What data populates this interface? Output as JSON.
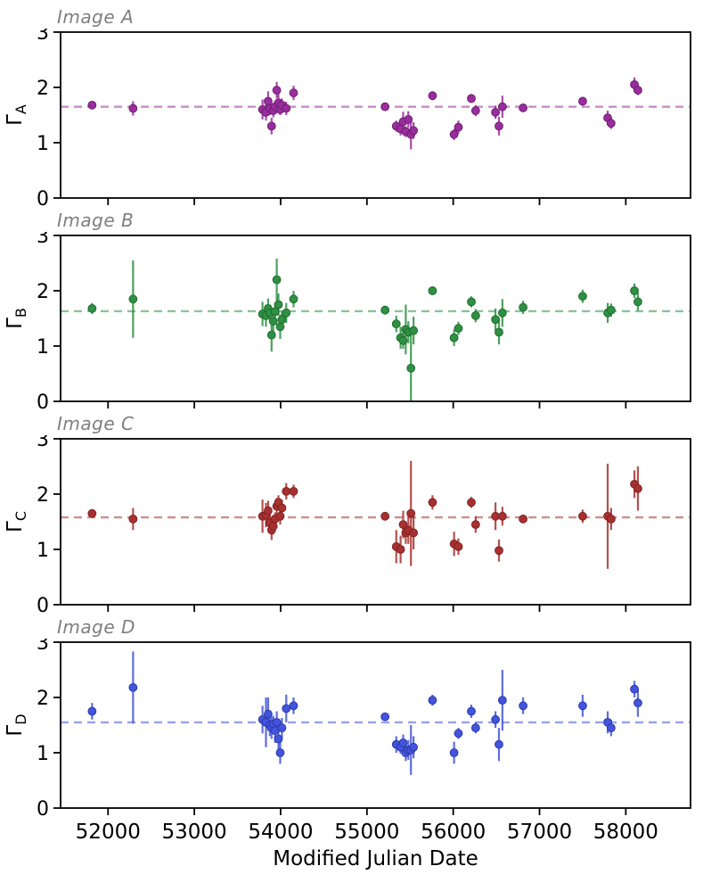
{
  "figure": {
    "xlabel": "Modified Julian Date",
    "x_ticks": [
      52000,
      53000,
      54000,
      55000,
      56000,
      57000,
      58000
    ],
    "y_ticks": [
      0,
      1,
      2,
      3
    ],
    "xlim": [
      51450,
      58750
    ],
    "ylim": [
      0,
      3
    ],
    "axis_color": "#000000",
    "title_color": "#7f7f7f"
  },
  "chart_data": [
    {
      "type": "scatter",
      "title": "Image A",
      "ylabel_gamma": "Γ",
      "ylabel_sub": "A",
      "color": "#9A2D9E",
      "edge": "#6B1F6E",
      "mean_line": 1.65,
      "xlabel": "Modified Julian Date",
      "ylim": [
        0,
        3
      ],
      "points": [
        [
          51815,
          1.68,
          0.06
        ],
        [
          52290,
          1.62,
          0.13
        ],
        [
          53790,
          1.6,
          0.18
        ],
        [
          53830,
          1.55,
          0.15
        ],
        [
          53855,
          1.75,
          0.18
        ],
        [
          53875,
          1.62,
          0.12
        ],
        [
          53895,
          1.3,
          0.15
        ],
        [
          53915,
          1.58,
          0.12
        ],
        [
          53935,
          1.65,
          0.1
        ],
        [
          53955,
          1.95,
          0.15
        ],
        [
          53975,
          1.72,
          0.18
        ],
        [
          53995,
          1.6,
          0.1
        ],
        [
          54015,
          1.68,
          0.12
        ],
        [
          54065,
          1.62,
          0.12
        ],
        [
          54150,
          1.9,
          0.13
        ],
        [
          55210,
          1.65,
          0.07
        ],
        [
          55340,
          1.3,
          0.1
        ],
        [
          55390,
          1.25,
          0.12
        ],
        [
          55420,
          1.38,
          0.18
        ],
        [
          55450,
          1.2,
          0.1
        ],
        [
          55480,
          1.42,
          0.15
        ],
        [
          55510,
          1.15,
          0.27
        ],
        [
          55540,
          1.22,
          0.15
        ],
        [
          55760,
          1.85,
          0.08
        ],
        [
          56010,
          1.15,
          0.1
        ],
        [
          56060,
          1.28,
          0.12
        ],
        [
          56210,
          1.8,
          0.08
        ],
        [
          56260,
          1.58,
          0.1
        ],
        [
          56490,
          1.55,
          0.12
        ],
        [
          56530,
          1.3,
          0.17
        ],
        [
          56570,
          1.65,
          0.2
        ],
        [
          56810,
          1.63,
          0.06
        ],
        [
          57500,
          1.75,
          0.08
        ],
        [
          57790,
          1.45,
          0.13
        ],
        [
          57830,
          1.35,
          0.1
        ],
        [
          58100,
          2.05,
          0.13
        ],
        [
          58140,
          1.95,
          0.09
        ]
      ]
    },
    {
      "type": "scatter",
      "title": "Image B",
      "ylabel_gamma": "Γ",
      "ylabel_sub": "B",
      "color": "#2E9142",
      "edge": "#1F6B30",
      "mean_line": 1.63,
      "xlabel": "Modified Julian Date",
      "ylim": [
        0,
        3
      ],
      "points": [
        [
          51815,
          1.68,
          0.1
        ],
        [
          52290,
          1.85,
          0.7
        ],
        [
          53790,
          1.58,
          0.22
        ],
        [
          53830,
          1.55,
          0.2
        ],
        [
          53855,
          1.68,
          0.18
        ],
        [
          53875,
          1.6,
          0.15
        ],
        [
          53895,
          1.2,
          0.3
        ],
        [
          53915,
          1.45,
          0.2
        ],
        [
          53935,
          1.62,
          0.15
        ],
        [
          53955,
          2.2,
          0.38
        ],
        [
          53975,
          1.75,
          0.2
        ],
        [
          53995,
          1.35,
          0.22
        ],
        [
          54015,
          1.48,
          0.15
        ],
        [
          54065,
          1.6,
          0.18
        ],
        [
          54150,
          1.85,
          0.15
        ],
        [
          55210,
          1.65,
          0.08
        ],
        [
          55340,
          1.4,
          0.15
        ],
        [
          55390,
          1.15,
          0.2
        ],
        [
          55420,
          1.1,
          0.15
        ],
        [
          55450,
          1.3,
          0.45
        ],
        [
          55480,
          1.25,
          0.2
        ],
        [
          55510,
          0.6,
          0.6
        ],
        [
          55540,
          1.28,
          0.25
        ],
        [
          55760,
          2.0,
          0.08
        ],
        [
          56010,
          1.15,
          0.15
        ],
        [
          56060,
          1.32,
          0.12
        ],
        [
          56210,
          1.8,
          0.1
        ],
        [
          56260,
          1.55,
          0.12
        ],
        [
          56490,
          1.48,
          0.2
        ],
        [
          56530,
          1.25,
          0.22
        ],
        [
          56570,
          1.6,
          0.25
        ],
        [
          56810,
          1.7,
          0.12
        ],
        [
          57500,
          1.9,
          0.12
        ],
        [
          57790,
          1.6,
          0.18
        ],
        [
          57830,
          1.65,
          0.12
        ],
        [
          58100,
          2.0,
          0.13
        ],
        [
          58140,
          1.8,
          0.16
        ]
      ]
    },
    {
      "type": "scatter",
      "title": "Image C",
      "ylabel_gamma": "Γ",
      "ylabel_sub": "C",
      "color": "#A93030",
      "edge": "#7C2222",
      "mean_line": 1.58,
      "xlabel": "Modified Julian Date",
      "ylim": [
        0,
        3
      ],
      "points": [
        [
          51815,
          1.65,
          0.06
        ],
        [
          52290,
          1.55,
          0.2
        ],
        [
          53790,
          1.6,
          0.3
        ],
        [
          53830,
          1.62,
          0.22
        ],
        [
          53855,
          1.7,
          0.18
        ],
        [
          53875,
          1.48,
          0.15
        ],
        [
          53895,
          1.35,
          0.18
        ],
        [
          53915,
          1.42,
          0.15
        ],
        [
          53935,
          1.55,
          0.12
        ],
        [
          53955,
          1.78,
          0.15
        ],
        [
          53975,
          1.85,
          0.13
        ],
        [
          53995,
          1.6,
          0.15
        ],
        [
          54015,
          1.75,
          0.15
        ],
        [
          54065,
          2.05,
          0.15
        ],
        [
          54150,
          2.05,
          0.12
        ],
        [
          55210,
          1.6,
          0.07
        ],
        [
          55340,
          1.05,
          0.3
        ],
        [
          55390,
          1.0,
          0.25
        ],
        [
          55420,
          1.45,
          0.25
        ],
        [
          55450,
          1.3,
          0.2
        ],
        [
          55480,
          1.35,
          0.25
        ],
        [
          55510,
          1.65,
          0.95
        ],
        [
          55540,
          1.3,
          0.3
        ],
        [
          55760,
          1.85,
          0.13
        ],
        [
          56010,
          1.1,
          0.22
        ],
        [
          56060,
          1.05,
          0.15
        ],
        [
          56210,
          1.85,
          0.1
        ],
        [
          56260,
          1.45,
          0.15
        ],
        [
          56490,
          1.6,
          0.25
        ],
        [
          56530,
          0.98,
          0.2
        ],
        [
          56570,
          1.6,
          0.17
        ],
        [
          56810,
          1.55,
          0.07
        ],
        [
          57500,
          1.6,
          0.12
        ],
        [
          57790,
          1.6,
          0.95
        ],
        [
          57830,
          1.55,
          0.2
        ],
        [
          58100,
          2.18,
          0.25
        ],
        [
          58140,
          2.1,
          0.4
        ]
      ]
    },
    {
      "type": "scatter",
      "title": "Image D",
      "ylabel_gamma": "Γ",
      "ylabel_sub": "D",
      "color": "#4355DD",
      "edge": "#2B38A8",
      "mean_line": 1.55,
      "xlabel": "Modified Julian Date",
      "ylim": [
        0,
        3
      ],
      "points": [
        [
          51815,
          1.75,
          0.15
        ],
        [
          52290,
          2.18,
          0.65
        ],
        [
          53790,
          1.6,
          0.25
        ],
        [
          53830,
          1.55,
          0.45
        ],
        [
          53855,
          1.7,
          0.3
        ],
        [
          53875,
          1.5,
          0.2
        ],
        [
          53895,
          1.45,
          0.2
        ],
        [
          53915,
          1.52,
          0.15
        ],
        [
          53935,
          1.4,
          0.22
        ],
        [
          53955,
          1.55,
          0.2
        ],
        [
          53975,
          1.25,
          0.25
        ],
        [
          53995,
          1.0,
          0.2
        ],
        [
          54015,
          1.45,
          0.18
        ],
        [
          54065,
          1.8,
          0.25
        ],
        [
          54150,
          1.85,
          0.15
        ],
        [
          55210,
          1.65,
          0.07
        ],
        [
          55340,
          1.15,
          0.15
        ],
        [
          55390,
          1.1,
          0.12
        ],
        [
          55420,
          1.18,
          0.15
        ],
        [
          55450,
          1.0,
          0.15
        ],
        [
          55480,
          1.05,
          0.18
        ],
        [
          55510,
          1.05,
          0.45
        ],
        [
          55540,
          1.1,
          0.2
        ],
        [
          55760,
          1.95,
          0.1
        ],
        [
          56010,
          1.0,
          0.2
        ],
        [
          56060,
          1.35,
          0.1
        ],
        [
          56210,
          1.75,
          0.12
        ],
        [
          56260,
          1.45,
          0.1
        ],
        [
          56490,
          1.6,
          0.15
        ],
        [
          56530,
          1.15,
          0.3
        ],
        [
          56570,
          1.95,
          0.55
        ],
        [
          56810,
          1.85,
          0.15
        ],
        [
          57500,
          1.85,
          0.2
        ],
        [
          57790,
          1.55,
          0.2
        ],
        [
          57830,
          1.45,
          0.15
        ],
        [
          58100,
          2.15,
          0.15
        ],
        [
          58140,
          1.9,
          0.25
        ]
      ]
    }
  ]
}
